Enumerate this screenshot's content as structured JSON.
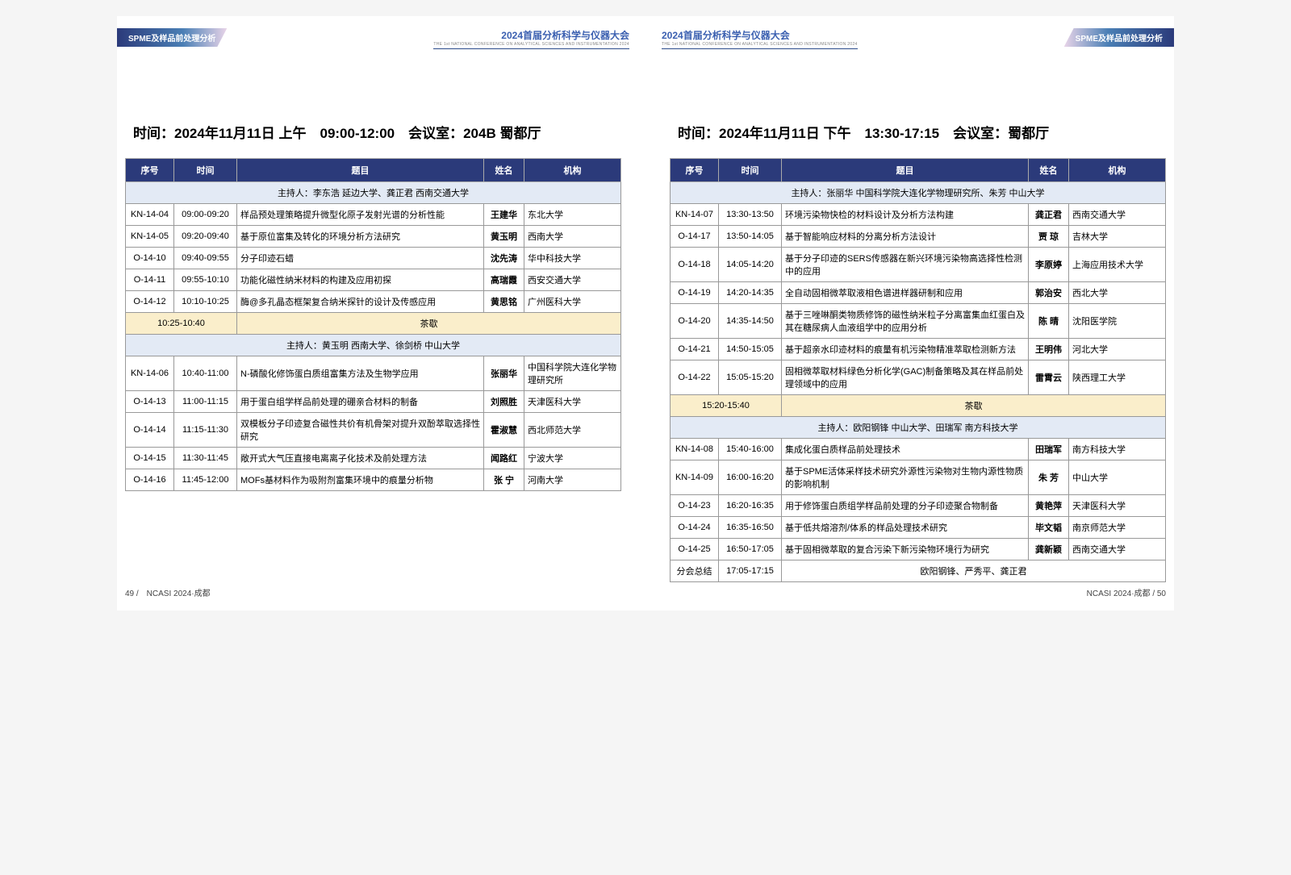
{
  "conference": {
    "title": "2024首届分析科学与仪器大会",
    "subtitle": "THE 1st NATIONAL CONFERENCE ON ANALYTICAL SCIENCES AND INSTRUMENTATION 2024",
    "topic_tab": "SPME及样品前处理分析"
  },
  "left_page": {
    "session_info": "时间：2024年11月11日 上午　09:00-12:00　会议室：204B 蜀都厅",
    "footer": "49 /　NCASI 2024·成都",
    "headers": {
      "seq": "序号",
      "time": "时间",
      "topic": "题目",
      "name": "姓名",
      "inst": "机构"
    },
    "host1": "主持人：李东浩 延边大学、龚正君 西南交通大学",
    "host2": "主持人：黄玉明 西南大学、徐剑桥 中山大学",
    "break_time": "10:25-10:40",
    "break_label": "茶歇",
    "rows1": [
      {
        "seq": "KN-14-04",
        "time": "09:00-09:20",
        "topic": "样品预处理策略提升微型化原子发射光谱的分析性能",
        "name": "王建华",
        "inst": "东北大学"
      },
      {
        "seq": "KN-14-05",
        "time": "09:20-09:40",
        "topic": "基于原位富集及转化的环境分析方法研究",
        "name": "黄玉明",
        "inst": "西南大学"
      },
      {
        "seq": "O-14-10",
        "time": "09:40-09:55",
        "topic": "分子印迹石蜡",
        "name": "沈先涛",
        "inst": "华中科技大学"
      },
      {
        "seq": "O-14-11",
        "time": "09:55-10:10",
        "topic": "功能化磁性纳米材料的构建及应用初探",
        "name": "高瑞霞",
        "inst": "西安交通大学"
      },
      {
        "seq": "O-14-12",
        "time": "10:10-10:25",
        "topic": "酶@多孔晶态框架复合纳米探针的设计及传感应用",
        "name": "黄思铭",
        "inst": "广州医科大学"
      }
    ],
    "rows2": [
      {
        "seq": "KN-14-06",
        "time": "10:40-11:00",
        "topic": "N-磷酸化修饰蛋白质组富集方法及生物学应用",
        "name": "张丽华",
        "inst": "中国科学院大连化学物理研究所"
      },
      {
        "seq": "O-14-13",
        "time": "11:00-11:15",
        "topic": "用于蛋白组学样品前处理的硼亲合材料的制备",
        "name": "刘照胜",
        "inst": "天津医科大学"
      },
      {
        "seq": "O-14-14",
        "time": "11:15-11:30",
        "topic": "双模板分子印迹复合磁性共价有机骨架对提升双酚萃取选择性研究",
        "name": "霍淑慧",
        "inst": "西北师范大学"
      },
      {
        "seq": "O-14-15",
        "time": "11:30-11:45",
        "topic": "敞开式大气压直接电离离子化技术及前处理方法",
        "name": "闻路红",
        "inst": "宁波大学"
      },
      {
        "seq": "O-14-16",
        "time": "11:45-12:00",
        "topic": "MOFs基材料作为吸附剂富集环境中的痕量分析物",
        "name": "张 宁",
        "inst": "河南大学"
      }
    ]
  },
  "right_page": {
    "session_info": "时间：2024年11月11日 下午　13:30-17:15　会议室：蜀都厅",
    "footer": "NCASI 2024·成都 / 50",
    "headers": {
      "seq": "序号",
      "time": "时间",
      "topic": "题目",
      "name": "姓名",
      "inst": "机构"
    },
    "host1": "主持人：张丽华 中国科学院大连化学物理研究所、朱芳 中山大学",
    "host2": "主持人：欧阳钢锋 中山大学、田瑞军 南方科技大学",
    "break_time": "15:20-15:40",
    "break_label": "茶歇",
    "summary": {
      "seq": "分会总结",
      "time": "17:05-17:15",
      "text": "欧阳钢锋、严秀平、龚正君"
    },
    "rows1": [
      {
        "seq": "KN-14-07",
        "time": "13:30-13:50",
        "topic": "环境污染物快检的材料设计及分析方法构建",
        "name": "龚正君",
        "inst": "西南交通大学"
      },
      {
        "seq": "O-14-17",
        "time": "13:50-14:05",
        "topic": "基于智能响应材料的分离分析方法设计",
        "name": "贾 琼",
        "inst": "吉林大学"
      },
      {
        "seq": "O-14-18",
        "time": "14:05-14:20",
        "topic": "基于分子印迹的SERS传感器在新兴环境污染物高选择性检测中的应用",
        "name": "李原婷",
        "inst": "上海应用技术大学"
      },
      {
        "seq": "O-14-19",
        "time": "14:20-14:35",
        "topic": "全自动固相微萃取液相色谱进样器研制和应用",
        "name": "郭治安",
        "inst": "西北大学"
      },
      {
        "seq": "O-14-20",
        "time": "14:35-14:50",
        "topic": "基于三唑啉酮类物质修饰的磁性纳米粒子分离富集血红蛋白及其在糖尿病人血液组学中的应用分析",
        "name": "陈 晴",
        "inst": "沈阳医学院"
      },
      {
        "seq": "O-14-21",
        "time": "14:50-15:05",
        "topic": "基于超亲水印迹材料的痕量有机污染物精准萃取检测新方法",
        "name": "王明伟",
        "inst": "河北大学"
      },
      {
        "seq": "O-14-22",
        "time": "15:05-15:20",
        "topic": "固相微萃取材料绿色分析化学(GAC)制备策略及其在样品前处理领域中的应用",
        "name": "雷霄云",
        "inst": "陕西理工大学"
      }
    ],
    "rows2": [
      {
        "seq": "KN-14-08",
        "time": "15:40-16:00",
        "topic": "集成化蛋白质样品前处理技术",
        "name": "田瑞军",
        "inst": "南方科技大学"
      },
      {
        "seq": "KN-14-09",
        "time": "16:00-16:20",
        "topic": "基于SPME活体采样技术研究外源性污染物对生物内源性物质的影响机制",
        "name": "朱 芳",
        "inst": "中山大学"
      },
      {
        "seq": "O-14-23",
        "time": "16:20-16:35",
        "topic": "用于修饰蛋白质组学样品前处理的分子印迹聚合物制备",
        "name": "黄艳萍",
        "inst": "天津医科大学"
      },
      {
        "seq": "O-14-24",
        "time": "16:35-16:50",
        "topic": "基于低共熔溶剂/体系的样品处理技术研究",
        "name": "毕文韬",
        "inst": "南京师范大学"
      },
      {
        "seq": "O-14-25",
        "time": "16:50-17:05",
        "topic": "基于固相微萃取的复合污染下新污染物环境行为研究",
        "name": "龚新颖",
        "inst": "西南交通大学"
      }
    ]
  },
  "styling": {
    "header_bg": "#2b3a7a",
    "host_bg": "#e3eaf5",
    "break_bg": "#faeecb",
    "border_color": "#999999",
    "conf_title_color": "#3a5fb0"
  }
}
